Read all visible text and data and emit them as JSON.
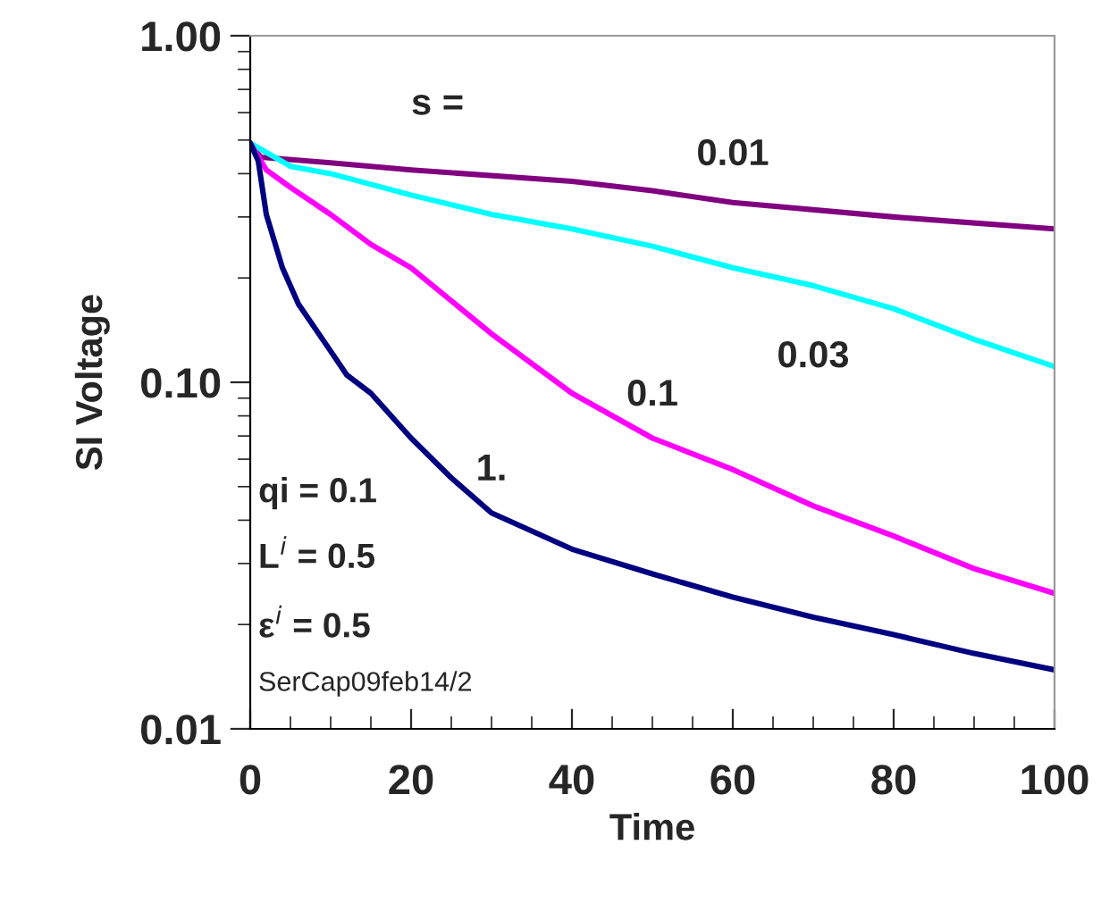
{
  "chart_data": {
    "type": "line",
    "xlabel": "Time",
    "ylabel": "SI Voltage",
    "log": "y",
    "xlim": [
      0,
      100
    ],
    "xticks": [
      0,
      20,
      40,
      60,
      80,
      100
    ],
    "ylim": [
      0.01,
      1
    ],
    "yticks": [
      {
        "value": 0.01,
        "label": "0.01"
      },
      {
        "value": 0.1,
        "label": "0.10"
      },
      {
        "value": 1,
        "label": "1.00"
      }
    ],
    "grid": false,
    "legend": false,
    "marker": "none",
    "line_style": "solid",
    "annotations": [
      "s =",
      "qi = 0.1",
      "L$^{i}$ = 0.5",
      "ε$^{i}$ = 0.5",
      "SerCap09feb14/2"
    ],
    "series": [
      {
        "name": "0.01",
        "color": "#800080",
        "x": [
          0,
          1.3,
          10,
          20,
          40,
          50,
          60,
          80,
          100
        ],
        "values": [
          0.49,
          0.446,
          0.43,
          0.41,
          0.38,
          0.357,
          0.33,
          0.3,
          0.277
        ]
      },
      {
        "name": "0.03",
        "color": "#00ffff",
        "x": [
          0,
          5,
          10,
          20,
          30,
          40,
          50,
          60,
          70,
          80,
          90,
          100
        ],
        "values": [
          0.49,
          0.42,
          0.4,
          0.347,
          0.305,
          0.277,
          0.247,
          0.214,
          0.19,
          0.163,
          0.133,
          0.111
        ]
      },
      {
        "name": "0.1",
        "color": "#ff00ff",
        "x": [
          0,
          2,
          5,
          10,
          15,
          20,
          30,
          40,
          50,
          60,
          70,
          80,
          90,
          100
        ],
        "values": [
          0.49,
          0.41,
          0.365,
          0.305,
          0.25,
          0.214,
          0.138,
          0.093,
          0.069,
          0.056,
          0.044,
          0.036,
          0.029,
          0.0246
        ]
      },
      {
        "name": "1.",
        "color": "#000080",
        "x": [
          0,
          1,
          2,
          4,
          6,
          10,
          12,
          15,
          20,
          25,
          30,
          40,
          50,
          60,
          70,
          80,
          90,
          100
        ],
        "values": [
          0.49,
          0.435,
          0.305,
          0.214,
          0.168,
          0.123,
          0.105,
          0.093,
          0.069,
          0.053,
          0.042,
          0.033,
          0.028,
          0.024,
          0.021,
          0.0187,
          0.0165,
          0.0148
        ]
      }
    ]
  }
}
